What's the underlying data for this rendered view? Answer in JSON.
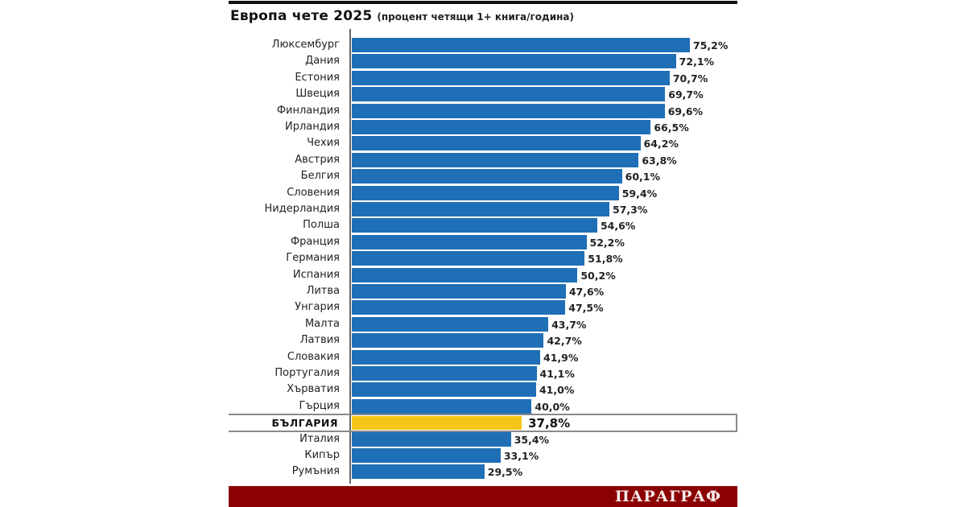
{
  "header": {
    "title": "Европа чете 2025",
    "subtitle": "(процент четящи 1+ книга/година)"
  },
  "footer": {
    "brand": "ПАРАГРАФ"
  },
  "colors": {
    "bar": "#1f6fb6",
    "highlight_bar": "#f5c518",
    "footer_bg": "#8b0000"
  },
  "chart_data": {
    "type": "bar",
    "orientation": "horizontal",
    "title": "Европа чете 2025",
    "subtitle": "(процент четящи 1+ книга/година)",
    "xlabel": "",
    "ylabel": "",
    "unit": "%",
    "highlight": "БЪЛГАРИЯ",
    "categories": [
      "Люксембург",
      "Дания",
      "Естония",
      "Швеция",
      "Финландия",
      "Ирландия",
      "Чехия",
      "Австрия",
      "Белгия",
      "Словения",
      "Нидерландия",
      "Полша",
      "Франция",
      "Германия",
      "Испания",
      "Литва",
      "Унгария",
      "Малта",
      "Латвия",
      "Словакия",
      "Португалия",
      "Хърватия",
      "Гърция",
      "БЪЛГАРИЯ",
      "Италия",
      "Кипър",
      "Румъния"
    ],
    "values": [
      75.2,
      72.1,
      70.7,
      69.7,
      69.6,
      66.5,
      64.2,
      63.8,
      60.1,
      59.4,
      57.3,
      54.6,
      52.2,
      51.8,
      50.2,
      47.6,
      47.5,
      43.7,
      42.7,
      41.9,
      41.1,
      41.0,
      40.0,
      37.8,
      35.4,
      33.1,
      29.5
    ],
    "value_labels": [
      "75,2%",
      "72,1%",
      "70,7%",
      "69,7%",
      "69,6%",
      "66,5%",
      "64,2%",
      "63,8%",
      "60,1%",
      "59,4%",
      "57,3%",
      "54,6%",
      "52,2%",
      "51,8%",
      "50,2%",
      "47,6%",
      "47,5%",
      "43,7%",
      "42,7%",
      "41,9%",
      "41,1%",
      "41,0%",
      "40,0%",
      "37,8%",
      "35,4%",
      "33,1%",
      "29,5%"
    ],
    "grid": false,
    "legend": null
  }
}
